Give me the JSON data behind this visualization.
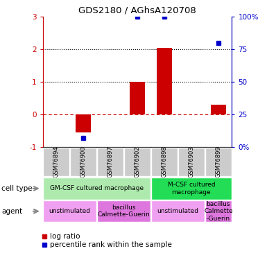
{
  "title": "GDS2180 / AGhsA120708",
  "samples": [
    "GSM76894",
    "GSM76900",
    "GSM76897",
    "GSM76902",
    "GSM76898",
    "GSM76903",
    "GSM76899"
  ],
  "log_ratio": [
    0,
    -0.55,
    0,
    1.0,
    2.05,
    0,
    0.3
  ],
  "percentile_rank": [
    null,
    7,
    null,
    100,
    100,
    null,
    80
  ],
  "ylim_left": [
    -1,
    3
  ],
  "ylim_right": [
    0,
    100
  ],
  "left_ticks": [
    -1,
    0,
    1,
    2,
    3
  ],
  "right_ticks": [
    0,
    25,
    50,
    75,
    100
  ],
  "right_tick_labels": [
    "0%",
    "25",
    "50",
    "75",
    "100%"
  ],
  "dotted_lines": [
    1,
    2
  ],
  "cell_type_row": [
    {
      "label": "GM-CSF cultured macrophage",
      "start": 0,
      "end": 4,
      "color": "#aeeaae"
    },
    {
      "label": "M-CSF cultured\nmacrophage",
      "start": 4,
      "end": 7,
      "color": "#22dd55"
    }
  ],
  "agent_row": [
    {
      "label": "unstimulated",
      "start": 0,
      "end": 2,
      "color": "#f0a0f0"
    },
    {
      "label": "bacillus\nCalmette-Guerin",
      "start": 2,
      "end": 4,
      "color": "#dd77dd"
    },
    {
      "label": "unstimulated",
      "start": 4,
      "end": 6,
      "color": "#f0a0f0"
    },
    {
      "label": "bacillus\nCalmette\n-Guerin",
      "start": 6,
      "end": 7,
      "color": "#dd77dd"
    }
  ],
  "bar_color": "#CC0000",
  "dot_color": "#0000CC",
  "zero_line_color": "#CC0000",
  "background_color": "#ffffff",
  "title_color": "#000000",
  "left_axis_color": "#CC0000",
  "right_axis_color": "#0000CC",
  "sample_box_color": "#cccccc"
}
